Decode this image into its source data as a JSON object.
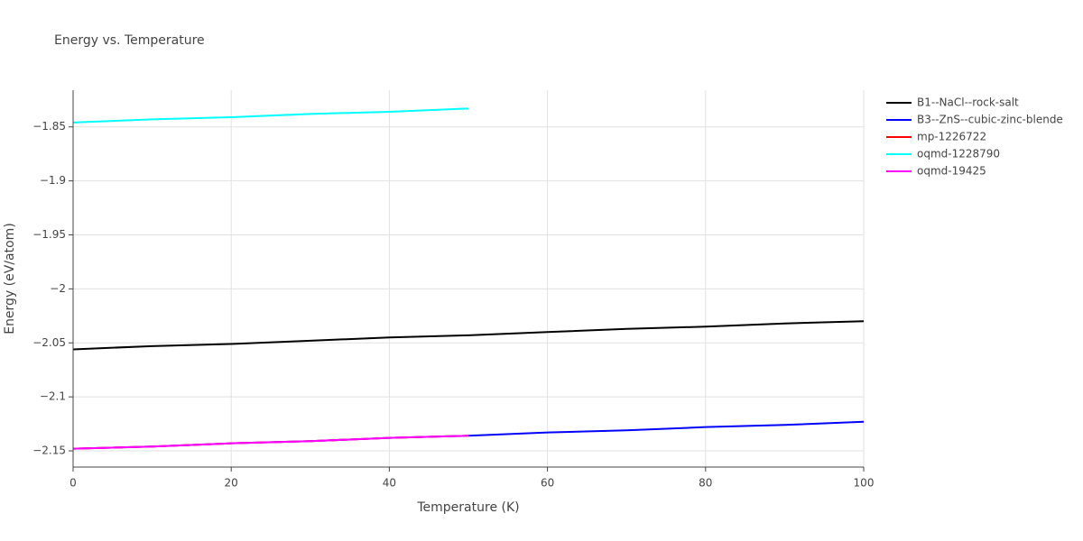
{
  "chart_data": {
    "type": "line",
    "title": "Energy vs. Temperature",
    "x_label": "Temperature (K)",
    "y_label": "Energy (eV/atom)",
    "x": [
      0,
      10,
      20,
      30,
      40,
      50,
      60,
      70,
      80,
      90,
      100
    ],
    "series": [
      {
        "name": "B1--NaCl--rock-salt",
        "color": "#000000",
        "values": [
          -2.056,
          -2.053,
          -2.051,
          -2.048,
          -2.045,
          -2.043,
          -2.04,
          -2.037,
          -2.035,
          -2.032,
          -2.03
        ]
      },
      {
        "name": "B3--ZnS--cubic-zinc-blende",
        "color": "#0000ff",
        "values": [
          -2.148,
          -2.146,
          -2.143,
          -2.141,
          -2.138,
          -2.136,
          -2.133,
          -2.131,
          -2.128,
          -2.126,
          -2.123
        ]
      },
      {
        "name": "mp-1226722",
        "color": "#ff0000",
        "values": [
          -2.148,
          -2.146,
          -2.143,
          -2.141,
          -2.138,
          -2.136,
          null,
          null,
          null,
          null,
          null
        ]
      },
      {
        "name": "oqmd-1228790",
        "color": "#00ffff",
        "values": [
          -1.846,
          -1.843,
          -1.841,
          -1.838,
          -1.836,
          -1.833,
          null,
          null,
          null,
          null,
          null
        ]
      },
      {
        "name": "oqmd-19425",
        "color": "#ff00ff",
        "values": [
          -2.148,
          -2.146,
          -2.143,
          -2.141,
          -2.138,
          -2.136,
          null,
          null,
          null,
          null,
          null
        ]
      }
    ],
    "xlim": [
      0,
      100
    ],
    "xticks": [
      0,
      20,
      40,
      60,
      80,
      100
    ],
    "ylim": [
      -2.165,
      -1.816
    ],
    "yticks": [
      {
        "value": -1.85,
        "label": "−1.85"
      },
      {
        "value": -1.9,
        "label": "−1.9"
      },
      {
        "value": -1.95,
        "label": "−1.95"
      },
      {
        "value": -2,
        "label": "−2"
      },
      {
        "value": -2.05,
        "label": "−2.05"
      },
      {
        "value": -2.1,
        "label": "−2.1"
      },
      {
        "value": -2.15,
        "label": "−2.15"
      }
    ],
    "grid": true,
    "legend": "right"
  }
}
